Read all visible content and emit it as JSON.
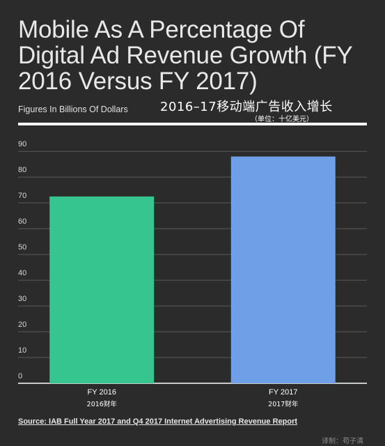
{
  "header": {
    "title": "Mobile As A Percentage Of Digital Ad Revenue Growth (FY 2016 Versus FY 2017)",
    "subtitle": "Figures In Billions Of Dollars",
    "cn_title": "2016–17移动端广告收入增长",
    "cn_unit": "（单位：十亿美元）"
  },
  "footer": {
    "source": "Source: IAB Full Year 2017 and Q4 2017 Internet Advertising Revenue Report",
    "watermark": "译制：苟子清"
  },
  "chart_data": {
    "type": "bar",
    "categories": [
      "FY 2016",
      "FY 2017"
    ],
    "category_sublabels": [
      "2016财年",
      "2017财年"
    ],
    "values": [
      72.5,
      88
    ],
    "colors": [
      "#37c58f",
      "#6f9fe6"
    ],
    "yticks": [
      0,
      10,
      20,
      30,
      40,
      50,
      60,
      70,
      80,
      90
    ],
    "ylim": [
      0,
      96
    ],
    "grid": true,
    "gridColor": "#5a5a5a"
  }
}
